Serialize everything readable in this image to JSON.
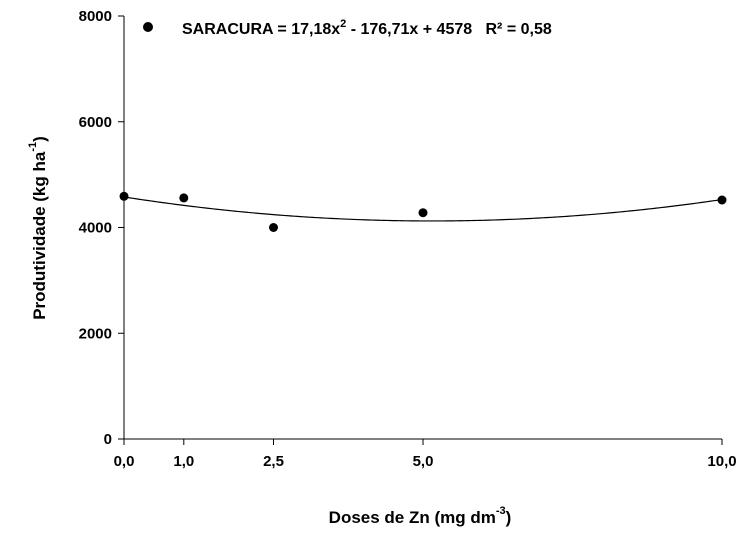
{
  "chart_data": {
    "type": "scatter",
    "xlabel": {
      "main": "Doses de Zn (mg dm",
      "sup": "-3",
      "tail": ")"
    },
    "ylabel": {
      "main": "Produtividade (kg ha",
      "sup": "-1",
      "tail": ")"
    },
    "x_ticks": [
      {
        "value": 0,
        "label": "0,0"
      },
      {
        "value": 1,
        "label": "1,0"
      },
      {
        "value": 2.5,
        "label": "2,5"
      },
      {
        "value": 5,
        "label": "5,0"
      },
      {
        "value": 10,
        "label": "10,0"
      }
    ],
    "y_ticks": [
      {
        "value": 0,
        "label": "0"
      },
      {
        "value": 2000,
        "label": "2000"
      },
      {
        "value": 4000,
        "label": "4000"
      },
      {
        "value": 6000,
        "label": "6000"
      },
      {
        "value": 8000,
        "label": "8000"
      }
    ],
    "xlim": [
      0,
      10
    ],
    "ylim": [
      0,
      8000
    ],
    "grid": false,
    "legend_position": "top",
    "series": [
      {
        "name": "SARACURA",
        "points": [
          {
            "x": 0,
            "y": 4590
          },
          {
            "x": 1,
            "y": 4560
          },
          {
            "x": 2.5,
            "y": 4000
          },
          {
            "x": 5,
            "y": 4280
          },
          {
            "x": 10,
            "y": 4520
          }
        ],
        "fit": {
          "a": 17.18,
          "b": -176.71,
          "c": 4578
        },
        "legend": {
          "name": "SARACURA",
          "eq_part1": " = 17,18x",
          "eq_sup": "2",
          "eq_part2": " - 176,71x + 4578   R² = 0,58"
        }
      }
    ],
    "colors": {
      "marker": "#000000",
      "line": "#000000",
      "axis": "#000000"
    }
  }
}
